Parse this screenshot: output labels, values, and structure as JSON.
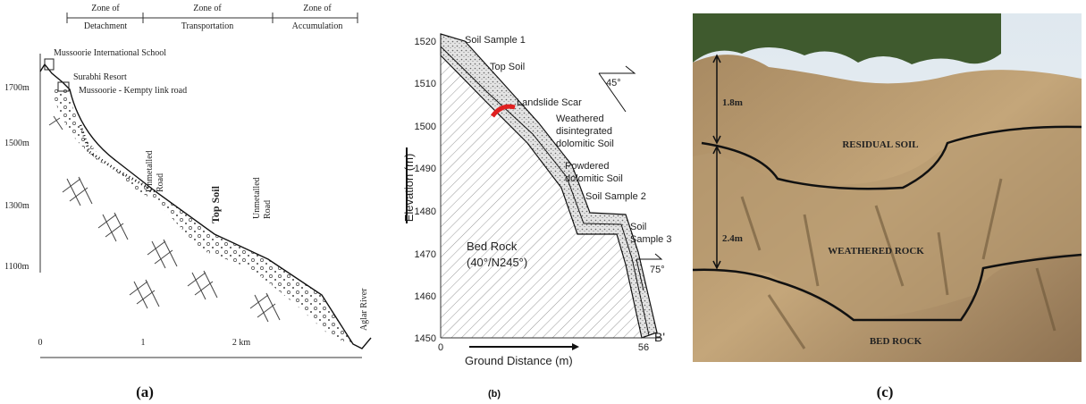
{
  "panel_a": {
    "caption": "(a)",
    "zones": [
      [
        "Zone of",
        "Detachment"
      ],
      [
        "Zone of",
        "Transportation"
      ],
      [
        "Zone of",
        "Accumulation"
      ]
    ],
    "places": [
      "Mussoorie International School",
      "Surabhi Resort",
      "Mussoorie - Kempty link road"
    ],
    "elevations": [
      "1700m",
      "1500m",
      "1300m",
      "1100m"
    ],
    "road_1": [
      "Unmetalled",
      "Road"
    ],
    "road_2": [
      "Unmetalled",
      "Road"
    ],
    "top_soil": "Top Soil",
    "river": "Aglar River",
    "scale": [
      "0",
      "1",
      "2 km"
    ]
  },
  "panel_b": {
    "caption": "(b)",
    "y_axis_title": "Elevation (m)",
    "x_axis_title": "Ground Distance (m)",
    "y_ticks": [
      "1520",
      "1510",
      "1500",
      "1490",
      "1480",
      "1470",
      "1460",
      "1450"
    ],
    "x_ticks": [
      "0",
      "56"
    ],
    "end_label": "B'",
    "labels": {
      "soil_sample_1": "Soil Sample 1",
      "top_soil": "Top Soil",
      "landslide_scar": "Landslide Scar",
      "weathered": [
        "Weathered",
        "disintegrated",
        "dolomitic Soil"
      ],
      "powdered": [
        "Powdered",
        "dolomitic Soil"
      ],
      "soil_sample_2": "Soil Sample 2",
      "soil_sample_3": [
        "Soil",
        "Sample 3"
      ],
      "angle_1": "45°",
      "angle_2": "75°",
      "bed_rock": [
        "Bed Rock",
        "(40°/N245°)"
      ]
    }
  },
  "panel_c": {
    "caption": "(c)",
    "thickness_1": "1.8m",
    "thickness_2": "2.4m",
    "layers": [
      "RESIDUAL SOIL",
      "WEATHERED ROCK",
      "BED ROCK"
    ]
  }
}
